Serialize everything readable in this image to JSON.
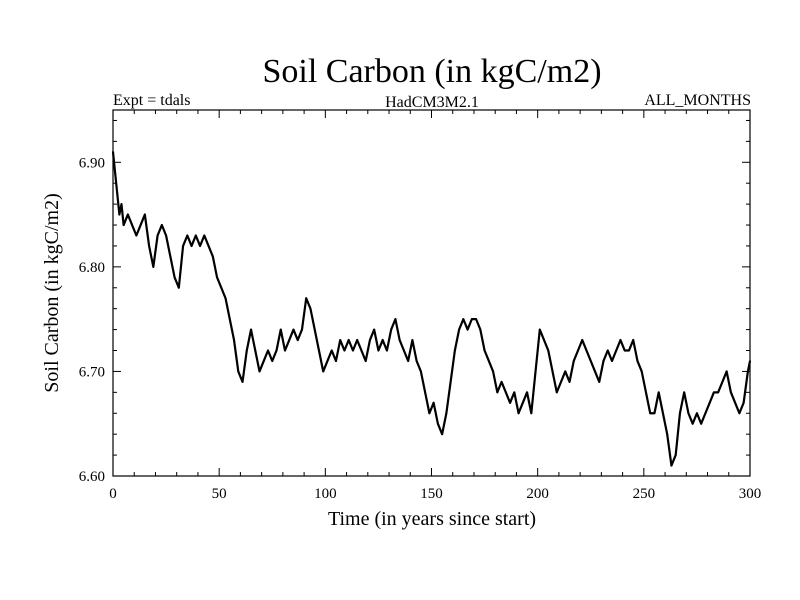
{
  "chart_data": {
    "type": "line",
    "title": "Soil Carbon (in kgC/m2)",
    "subtitle_left": "Expt = tdals",
    "subtitle_center": "HadCM3M2.1",
    "subtitle_right": "ALL_MONTHS",
    "xlabel": "Time (in years since start)",
    "ylabel": "Soil Carbon (in kgC/m2)",
    "xlim": [
      0,
      300
    ],
    "ylim": [
      6.6,
      6.95
    ],
    "xticks": [
      0,
      50,
      100,
      150,
      200,
      250,
      300
    ],
    "xtick_labels": [
      "0",
      "50",
      "100",
      "150",
      "200",
      "250",
      "300"
    ],
    "yticks": [
      6.6,
      6.7,
      6.8,
      6.9
    ],
    "ytick_labels": [
      "6.60",
      "6.70",
      "6.80",
      "6.90"
    ],
    "grid": false,
    "series_color": "#000000",
    "series": [
      {
        "x": [
          0,
          1,
          2,
          3,
          4,
          5,
          7,
          9,
          11,
          13,
          15,
          17,
          19,
          21,
          23,
          25,
          27,
          29,
          31,
          33,
          35,
          37,
          39,
          41,
          43,
          45,
          47,
          49,
          51,
          53,
          55,
          57,
          59,
          61,
          63,
          65,
          67,
          69,
          71,
          73,
          75,
          77,
          79,
          81,
          83,
          85,
          87,
          89,
          91,
          93,
          95,
          97,
          99,
          101,
          103,
          105,
          107,
          109,
          111,
          113,
          115,
          117,
          119,
          121,
          123,
          125,
          127,
          129,
          131,
          133,
          135,
          137,
          139,
          141,
          143,
          145,
          147,
          149,
          151,
          153,
          155,
          157,
          159,
          161,
          163,
          165,
          167,
          169,
          171,
          173,
          175,
          177,
          179,
          181,
          183,
          185,
          187,
          189,
          191,
          193,
          195,
          197,
          199,
          201,
          203,
          205,
          207,
          209,
          211,
          213,
          215,
          217,
          219,
          221,
          223,
          225,
          227,
          229,
          231,
          233,
          235,
          237,
          239,
          241,
          243,
          245,
          247,
          249,
          251,
          253,
          255,
          257,
          259,
          261,
          263,
          265,
          267,
          269,
          271,
          273,
          275,
          277,
          279,
          281,
          283,
          285,
          287,
          289,
          291,
          293,
          295,
          297,
          299,
          300
        ],
        "y": [
          6.91,
          6.89,
          6.87,
          6.85,
          6.86,
          6.84,
          6.85,
          6.84,
          6.83,
          6.84,
          6.85,
          6.82,
          6.8,
          6.83,
          6.84,
          6.83,
          6.81,
          6.79,
          6.78,
          6.82,
          6.83,
          6.82,
          6.83,
          6.82,
          6.83,
          6.82,
          6.81,
          6.79,
          6.78,
          6.77,
          6.75,
          6.73,
          6.7,
          6.69,
          6.72,
          6.74,
          6.72,
          6.7,
          6.71,
          6.72,
          6.71,
          6.72,
          6.74,
          6.72,
          6.73,
          6.74,
          6.73,
          6.74,
          6.77,
          6.76,
          6.74,
          6.72,
          6.7,
          6.71,
          6.72,
          6.71,
          6.73,
          6.72,
          6.73,
          6.72,
          6.73,
          6.72,
          6.71,
          6.73,
          6.74,
          6.72,
          6.73,
          6.72,
          6.74,
          6.75,
          6.73,
          6.72,
          6.71,
          6.73,
          6.71,
          6.7,
          6.68,
          6.66,
          6.67,
          6.65,
          6.64,
          6.66,
          6.69,
          6.72,
          6.74,
          6.75,
          6.74,
          6.75,
          6.75,
          6.74,
          6.72,
          6.71,
          6.7,
          6.68,
          6.69,
          6.68,
          6.67,
          6.68,
          6.66,
          6.67,
          6.68,
          6.66,
          6.7,
          6.74,
          6.73,
          6.72,
          6.7,
          6.68,
          6.69,
          6.7,
          6.69,
          6.71,
          6.72,
          6.73,
          6.72,
          6.71,
          6.7,
          6.69,
          6.71,
          6.72,
          6.71,
          6.72,
          6.73,
          6.72,
          6.72,
          6.73,
          6.71,
          6.7,
          6.68,
          6.66,
          6.66,
          6.68,
          6.66,
          6.64,
          6.61,
          6.62,
          6.66,
          6.68,
          6.66,
          6.65,
          6.66,
          6.65,
          6.66,
          6.67,
          6.68,
          6.68,
          6.69,
          6.7,
          6.68,
          6.67,
          6.66,
          6.67,
          6.7,
          6.71
        ]
      }
    ]
  }
}
